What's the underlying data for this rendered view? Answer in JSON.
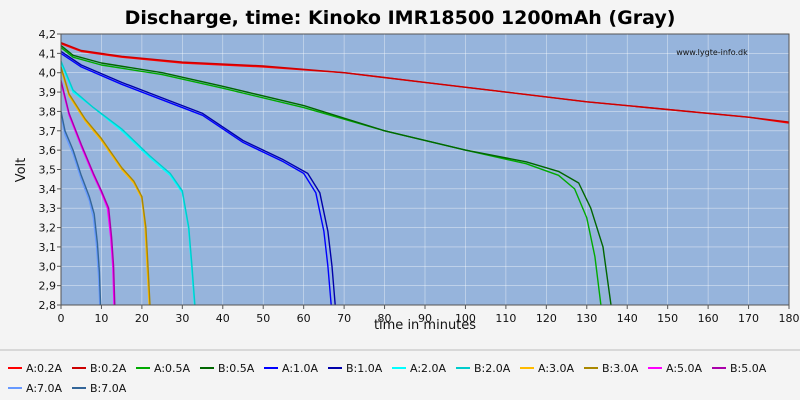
{
  "chart_data": {
    "type": "line",
    "title": "Discharge, time: Kinoko IMR18500 1200mAh (Gray)",
    "xlabel": "time in minutes",
    "ylabel": "Volt",
    "watermark": "www.lygte-info.dk",
    "xlim": [
      0,
      180
    ],
    "ylim": [
      2.8,
      4.2
    ],
    "xticks": [
      "0",
      "10",
      "20",
      "30",
      "40",
      "50",
      "60",
      "70",
      "80",
      "90",
      "100",
      "110",
      "120",
      "130",
      "140",
      "150",
      "160",
      "170",
      "180"
    ],
    "yticks": [
      "2,8",
      "2,9",
      "3,0",
      "3,1",
      "3,2",
      "3,3",
      "3,4",
      "3,5",
      "3,6",
      "3,7",
      "3,8",
      "3,9",
      "4,0",
      "4,1",
      "4,2"
    ],
    "grid": true,
    "legend_position": "bottom",
    "series": [
      {
        "name": "A:0.2A",
        "color": "#ff0000",
        "points": [
          [
            0,
            4.15
          ],
          [
            5,
            4.11
          ],
          [
            15,
            4.08
          ],
          [
            30,
            4.05
          ],
          [
            50,
            4.03
          ],
          [
            70,
            4.0
          ],
          [
            90,
            3.95
          ],
          [
            110,
            3.9
          ],
          [
            130,
            3.85
          ],
          [
            150,
            3.81
          ],
          [
            170,
            3.77
          ],
          [
            180,
            3.74
          ]
        ]
      },
      {
        "name": "B:0.2A",
        "color": "#cc0000",
        "points": [
          [
            0,
            4.155
          ],
          [
            5,
            4.115
          ],
          [
            15,
            4.085
          ],
          [
            30,
            4.055
          ],
          [
            50,
            4.035
          ],
          [
            70,
            4.0
          ],
          [
            90,
            3.95
          ],
          [
            110,
            3.9
          ],
          [
            130,
            3.85
          ],
          [
            150,
            3.81
          ],
          [
            170,
            3.77
          ],
          [
            180,
            3.745
          ]
        ]
      },
      {
        "name": "A:0.5A",
        "color": "#00aa00",
        "points": [
          [
            0,
            4.13
          ],
          [
            3,
            4.08
          ],
          [
            10,
            4.04
          ],
          [
            25,
            3.99
          ],
          [
            40,
            3.92
          ],
          [
            60,
            3.82
          ],
          [
            80,
            3.7
          ],
          [
            100,
            3.6
          ],
          [
            115,
            3.53
          ],
          [
            123,
            3.47
          ],
          [
            127,
            3.4
          ],
          [
            130,
            3.25
          ],
          [
            132,
            3.05
          ],
          [
            133.5,
            2.8
          ]
        ]
      },
      {
        "name": "B:0.5A",
        "color": "#006600",
        "points": [
          [
            0,
            4.14
          ],
          [
            3,
            4.09
          ],
          [
            10,
            4.05
          ],
          [
            25,
            4.0
          ],
          [
            40,
            3.93
          ],
          [
            60,
            3.83
          ],
          [
            80,
            3.7
          ],
          [
            100,
            3.6
          ],
          [
            115,
            3.54
          ],
          [
            123,
            3.49
          ],
          [
            128,
            3.43
          ],
          [
            131,
            3.3
          ],
          [
            134,
            3.1
          ],
          [
            136,
            2.8
          ]
        ]
      },
      {
        "name": "A:1.0A",
        "color": "#0000ff",
        "points": [
          [
            0,
            4.1
          ],
          [
            5,
            4.03
          ],
          [
            15,
            3.94
          ],
          [
            25,
            3.86
          ],
          [
            35,
            3.78
          ],
          [
            45,
            3.64
          ],
          [
            55,
            3.54
          ],
          [
            60,
            3.48
          ],
          [
            63,
            3.38
          ],
          [
            65,
            3.18
          ],
          [
            66,
            3.0
          ],
          [
            66.8,
            2.8
          ]
        ]
      },
      {
        "name": "B:1.0A",
        "color": "#0000aa",
        "points": [
          [
            0,
            4.11
          ],
          [
            5,
            4.04
          ],
          [
            15,
            3.95
          ],
          [
            25,
            3.87
          ],
          [
            35,
            3.79
          ],
          [
            45,
            3.65
          ],
          [
            55,
            3.55
          ],
          [
            61,
            3.48
          ],
          [
            64,
            3.38
          ],
          [
            66,
            3.18
          ],
          [
            67,
            3.0
          ],
          [
            67.8,
            2.8
          ]
        ]
      },
      {
        "name": "A:2.0A",
        "color": "#00ffff",
        "points": [
          [
            0,
            4.05
          ],
          [
            3,
            3.9
          ],
          [
            8,
            3.82
          ],
          [
            15,
            3.7
          ],
          [
            22,
            3.56
          ],
          [
            27,
            3.47
          ],
          [
            30,
            3.38
          ],
          [
            31.5,
            3.2
          ],
          [
            32.3,
            3.0
          ],
          [
            33,
            2.8
          ]
        ]
      },
      {
        "name": "B:2.0A",
        "color": "#00cccc",
        "points": [
          [
            0,
            4.06
          ],
          [
            3,
            3.91
          ],
          [
            8,
            3.82
          ],
          [
            15,
            3.71
          ],
          [
            22,
            3.57
          ],
          [
            27,
            3.48
          ],
          [
            30,
            3.39
          ],
          [
            31.6,
            3.2
          ],
          [
            32.4,
            3.0
          ],
          [
            33.1,
            2.8
          ]
        ]
      },
      {
        "name": "A:3.0A",
        "color": "#ffbb00",
        "points": [
          [
            0,
            4.02
          ],
          [
            2,
            3.88
          ],
          [
            6,
            3.75
          ],
          [
            10,
            3.65
          ],
          [
            15,
            3.5
          ],
          [
            18,
            3.43
          ],
          [
            20,
            3.35
          ],
          [
            20.8,
            3.2
          ],
          [
            21.3,
            3.0
          ],
          [
            21.8,
            2.8
          ]
        ]
      },
      {
        "name": "B:3.0A",
        "color": "#aa8800",
        "points": [
          [
            0,
            4.03
          ],
          [
            2,
            3.89
          ],
          [
            6,
            3.76
          ],
          [
            10,
            3.66
          ],
          [
            15,
            3.51
          ],
          [
            18,
            3.44
          ],
          [
            20,
            3.36
          ],
          [
            21,
            3.2
          ],
          [
            21.5,
            3.0
          ],
          [
            22,
            2.8
          ]
        ]
      },
      {
        "name": "A:5.0A",
        "color": "#ff00ff",
        "points": [
          [
            0,
            3.95
          ],
          [
            2,
            3.78
          ],
          [
            5,
            3.62
          ],
          [
            8,
            3.47
          ],
          [
            10,
            3.38
          ],
          [
            11.5,
            3.3
          ],
          [
            12.3,
            3.15
          ],
          [
            12.8,
            3.0
          ],
          [
            13.1,
            2.8
          ]
        ]
      },
      {
        "name": "B:5.0A",
        "color": "#aa00aa",
        "points": [
          [
            0,
            3.96
          ],
          [
            2,
            3.79
          ],
          [
            5,
            3.63
          ],
          [
            8,
            3.48
          ],
          [
            10,
            3.39
          ],
          [
            11.8,
            3.3
          ],
          [
            12.5,
            3.15
          ],
          [
            13,
            3.0
          ],
          [
            13.3,
            2.8
          ]
        ]
      },
      {
        "name": "A:7.0A",
        "color": "#6699ff",
        "points": [
          [
            0,
            3.78
          ],
          [
            1,
            3.68
          ],
          [
            3,
            3.58
          ],
          [
            5,
            3.45
          ],
          [
            7,
            3.34
          ],
          [
            8,
            3.25
          ],
          [
            8.8,
            3.1
          ],
          [
            9.3,
            2.95
          ],
          [
            9.6,
            2.8
          ]
        ]
      },
      {
        "name": "B:7.0A",
        "color": "#336699",
        "points": [
          [
            0,
            3.8
          ],
          [
            1,
            3.7
          ],
          [
            3,
            3.6
          ],
          [
            5,
            3.47
          ],
          [
            7,
            3.36
          ],
          [
            8.2,
            3.27
          ],
          [
            9,
            3.12
          ],
          [
            9.5,
            2.97
          ],
          [
            9.8,
            2.8
          ]
        ]
      }
    ]
  }
}
